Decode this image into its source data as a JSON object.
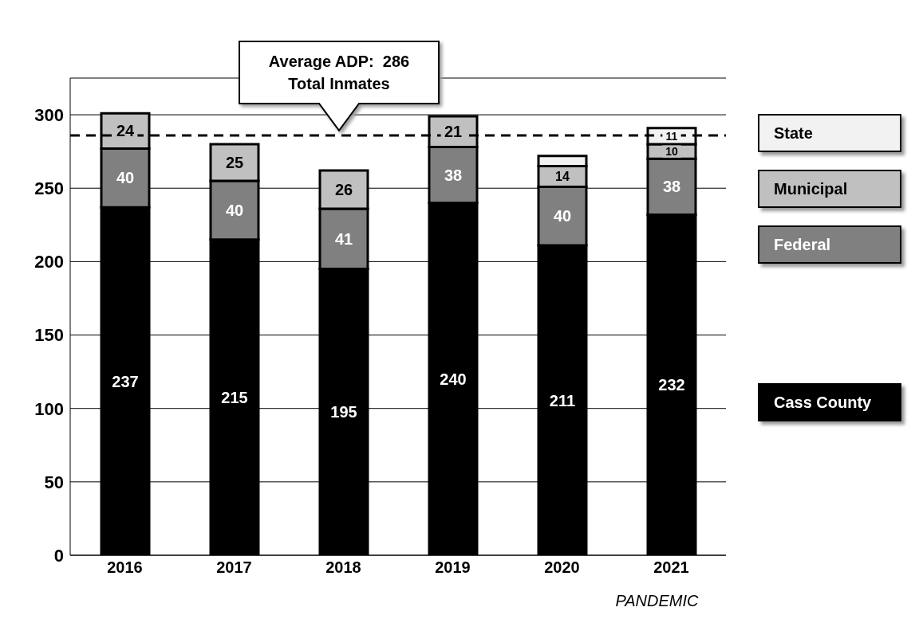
{
  "chart_data": {
    "type": "bar",
    "stacked": true,
    "categories": [
      "2016",
      "2017",
      "2018",
      "2019",
      "2020",
      "2021"
    ],
    "series": [
      {
        "name": "Cass County",
        "color": "#000000",
        "values": [
          237,
          215,
          195,
          240,
          211,
          232
        ],
        "value_labels": [
          "237",
          "215",
          "195",
          "240",
          "211",
          "232"
        ]
      },
      {
        "name": "Federal",
        "color": "#808080",
        "values": [
          40,
          40,
          41,
          38,
          40,
          38
        ],
        "value_labels": [
          "40",
          "40",
          "41",
          "38",
          "40",
          "38"
        ]
      },
      {
        "name": "Municipal",
        "color": "#c0c0c0",
        "values": [
          24,
          25,
          26,
          21,
          14,
          10
        ],
        "value_labels": [
          "24",
          "25",
          "26",
          "21",
          "14",
          "10"
        ]
      },
      {
        "name": "State",
        "color": "#f2f2f2",
        "values": [
          null,
          null,
          null,
          null,
          7,
          11
        ],
        "value_labels": [
          null,
          null,
          null,
          null,
          null,
          "11"
        ]
      }
    ],
    "ylim": [
      0,
      325
    ],
    "yticks": [
      0,
      50,
      100,
      150,
      200,
      250,
      300
    ],
    "grid": "y",
    "legend": "right",
    "ref_lines": [
      {
        "axis": "y",
        "value": 286,
        "label": "Average ADP:  286\nTotal Inmates",
        "line_style": "dashed",
        "color": "#000000"
      }
    ],
    "annotations": [
      "PANDEMIC"
    ]
  }
}
